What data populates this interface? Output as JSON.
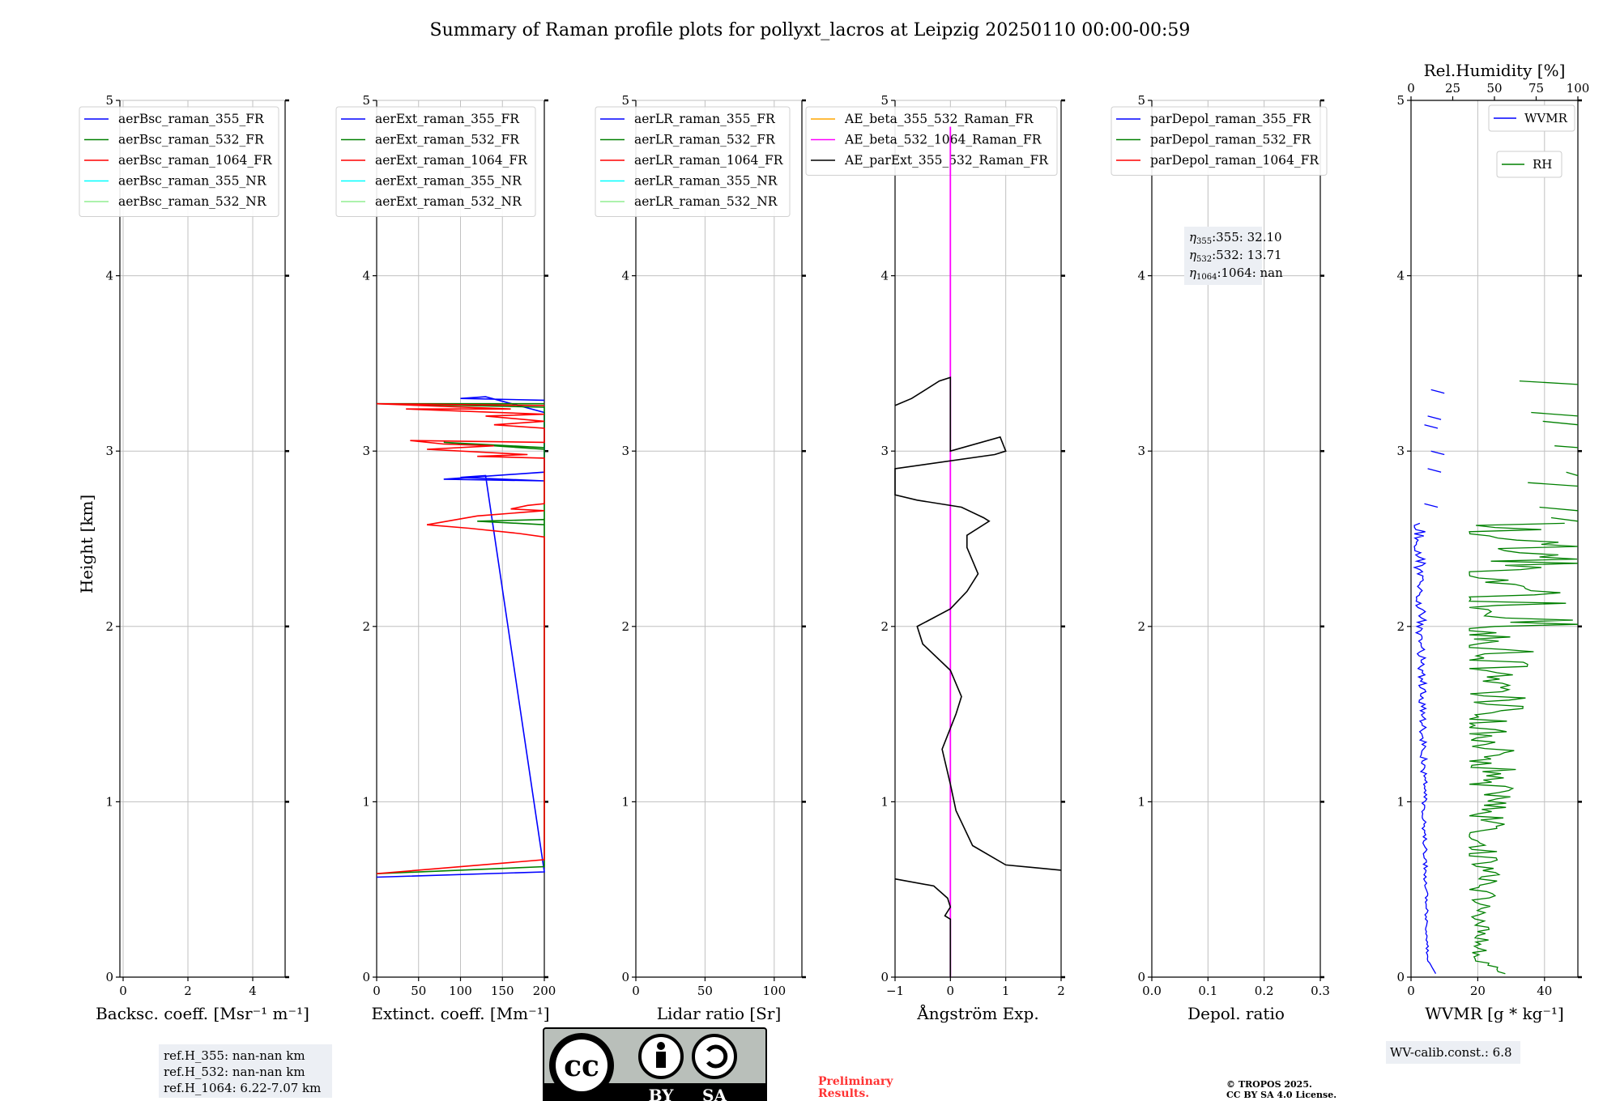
{
  "title": "Summary of Raman profile plots for pollyxt_lacros at Leipzig 20250110 00:00-00:59",
  "ylabel": "Height [km]",
  "colors": {
    "blue": "#0000ff",
    "green": "#008000",
    "red": "#ff0000",
    "cyan": "#00ffff",
    "lightgreen": "#90ee90",
    "orange": "#ffa500",
    "magenta": "#ff00ff",
    "black": "#000000",
    "grid": "#c0c0c0",
    "box": "#eceff4"
  },
  "panels": [
    {
      "id": "bsc",
      "xlabel": "Backsc. coeff. [Msr⁻¹ m⁻¹]",
      "xlim": [
        -0.1,
        5
      ],
      "xticks": [
        "0",
        "2",
        "4"
      ],
      "xtick_values": [
        0,
        2,
        4
      ],
      "legend": [
        "aerBsc_raman_355_FR",
        "aerBsc_raman_532_FR",
        "aerBsc_raman_1064_FR",
        "aerBsc_raman_355_NR",
        "aerBsc_raman_532_NR"
      ],
      "legend_colors": [
        "blue",
        "green",
        "red",
        "cyan",
        "lightgreen"
      ]
    },
    {
      "id": "ext",
      "xlabel": "Extinct. coeff. [Mm⁻¹]",
      "xlim": [
        0,
        200
      ],
      "xticks": [
        "0",
        "50",
        "100",
        "150",
        "200"
      ],
      "xtick_values": [
        0,
        50,
        100,
        150,
        200
      ],
      "legend": [
        "aerExt_raman_355_FR",
        "aerExt_raman_532_FR",
        "aerExt_raman_1064_FR",
        "aerExt_raman_355_NR",
        "aerExt_raman_532_NR"
      ],
      "legend_colors": [
        "blue",
        "green",
        "red",
        "cyan",
        "lightgreen"
      ]
    },
    {
      "id": "lr",
      "xlabel": "Lidar ratio [Sr]",
      "xlim": [
        0,
        120
      ],
      "xticks": [
        "0",
        "50",
        "100"
      ],
      "xtick_values": [
        0,
        50,
        100
      ],
      "legend": [
        "aerLR_raman_355_FR",
        "aerLR_raman_532_FR",
        "aerLR_raman_1064_FR",
        "aerLR_raman_355_NR",
        "aerLR_raman_532_NR"
      ],
      "legend_colors": [
        "blue",
        "green",
        "red",
        "cyan",
        "lightgreen"
      ]
    },
    {
      "id": "ae",
      "xlabel": "Ångström Exp.",
      "xlim": [
        -1,
        2
      ],
      "xticks": [
        "−1",
        "0",
        "1",
        "2"
      ],
      "xtick_values": [
        -1,
        0,
        1,
        2
      ],
      "legend": [
        "AE_beta_355_532_Raman_FR",
        "AE_beta_532_1064_Raman_FR",
        "AE_parExt_355_532_Raman_FR"
      ],
      "legend_colors": [
        "orange",
        "magenta",
        "black"
      ]
    },
    {
      "id": "depol",
      "xlabel": "Depol. ratio",
      "xlim": [
        0,
        0.3
      ],
      "xticks": [
        "0.0",
        "0.1",
        "0.2",
        "0.3"
      ],
      "xtick_values": [
        0,
        0.1,
        0.2,
        0.3
      ],
      "legend": [
        "parDepol_raman_355_FR",
        "parDepol_raman_532_FR",
        "parDepol_raman_1064_FR"
      ],
      "legend_colors": [
        "blue",
        "green",
        "red"
      ]
    },
    {
      "id": "wv",
      "xlabel": "WVMR [g * kg⁻¹]",
      "xlim": [
        0,
        50
      ],
      "xticks": [
        "0",
        "20",
        "40"
      ],
      "xtick_values": [
        0,
        20,
        40
      ],
      "top_label": "Rel.Humidity [%]",
      "top_xticks": [
        "0",
        "25",
        "50",
        "75",
        "100"
      ],
      "top_xtick_values": [
        0,
        25,
        50,
        75,
        100
      ],
      "legend": [
        "WVMR",
        "RH"
      ],
      "legend_colors": [
        "blue",
        "green"
      ]
    }
  ],
  "yticks": [
    "0",
    "1",
    "2",
    "3",
    "4",
    "5"
  ],
  "ylim": [
    0,
    5
  ],
  "eta": [
    "355: 32.10",
    "532: 13.71",
    "1064: nan"
  ],
  "ref": [
    "ref.H_355: nan-nan km",
    "ref.H_532: nan-nan km",
    "ref.H_1064: 6.22-7.07 km"
  ],
  "wv_calib": "WV-calib.const.: 6.8",
  "cc": {
    "by": "BY",
    "sa": "SA",
    "cc": "cc"
  },
  "preliminary": [
    "Preliminary",
    "Results."
  ],
  "copyright": [
    "© TROPOS 2025.",
    "CC BY SA 4.0 License."
  ],
  "chart_data": {
    "type": "line",
    "ext_profiles": {
      "355_FR": [
        [
          200,
          3.29
        ],
        [
          100,
          3.3
        ],
        [
          130,
          3.31
        ],
        [
          200,
          3.22
        ],
        [
          200,
          2.88
        ],
        [
          80,
          2.84
        ],
        [
          200,
          2.83
        ],
        [
          100,
          2.85
        ],
        [
          130,
          2.86
        ],
        [
          200,
          0.6
        ],
        [
          0,
          0.57
        ]
      ],
      "532_FR": [
        [
          200,
          3.27
        ],
        [
          0,
          3.27
        ],
        [
          200,
          3.25
        ],
        [
          200,
          3.02
        ],
        [
          80,
          3.05
        ],
        [
          200,
          3.01
        ],
        [
          200,
          2.58
        ],
        [
          120,
          2.6
        ],
        [
          200,
          2.61
        ],
        [
          200,
          0.63
        ],
        [
          0,
          0.59
        ]
      ],
      "1064_FR": [
        [
          200,
          3.26
        ],
        [
          0,
          3.27
        ],
        [
          160,
          3.24
        ],
        [
          35,
          3.24
        ],
        [
          200,
          3.21
        ],
        [
          130,
          3.2
        ],
        [
          200,
          3.17
        ],
        [
          140,
          3.15
        ],
        [
          200,
          3.13
        ],
        [
          200,
          3.05
        ],
        [
          40,
          3.06
        ],
        [
          80,
          3.04
        ],
        [
          140,
          3.03
        ],
        [
          60,
          3.01
        ],
        [
          180,
          2.98
        ],
        [
          120,
          2.97
        ],
        [
          200,
          2.96
        ],
        [
          200,
          2.7
        ],
        [
          180,
          2.69
        ],
        [
          160,
          2.67
        ],
        [
          200,
          2.66
        ],
        [
          120,
          2.63
        ],
        [
          60,
          2.58
        ],
        [
          110,
          2.56
        ],
        [
          170,
          2.53
        ],
        [
          200,
          2.51
        ],
        [
          200,
          0.67
        ],
        [
          0,
          0.59
        ]
      ]
    },
    "ae_parExt_355_532": [
      [
        -1,
        3.26
      ],
      [
        -0.7,
        3.3
      ],
      [
        -0.2,
        3.4
      ],
      [
        0,
        3.42
      ],
      [
        0,
        3.0
      ],
      [
        0.9,
        3.08
      ],
      [
        1.0,
        3.0
      ],
      [
        0.8,
        2.98
      ],
      [
        -1,
        2.9
      ],
      [
        -1,
        2.75
      ],
      [
        -0.6,
        2.72
      ],
      [
        0.2,
        2.68
      ],
      [
        0.6,
        2.62
      ],
      [
        0.7,
        2.6
      ],
      [
        0.3,
        2.52
      ],
      [
        0.3,
        2.45
      ],
      [
        0.5,
        2.3
      ],
      [
        0.3,
        2.2
      ],
      [
        0,
        2.1
      ],
      [
        -0.3,
        2.05
      ],
      [
        -0.6,
        2.0
      ],
      [
        -0.5,
        1.9
      ],
      [
        0,
        1.75
      ],
      [
        0.2,
        1.6
      ],
      [
        0.1,
        1.5
      ],
      [
        -0.15,
        1.3
      ],
      [
        0,
        1.1
      ],
      [
        0.1,
        0.95
      ],
      [
        0.4,
        0.75
      ],
      [
        1.0,
        0.64
      ],
      [
        2,
        0.61
      ]
    ],
    "ae_beta_532_1064": [
      [
        0,
        0
      ],
      [
        0,
        4.85
      ]
    ],
    "wvmr_g_per_kg": "values read from profile, approx 2-6 g/kg decreasing with height",
    "rh_percent": "values read from profile, approx 40-100 % with large variability"
  }
}
